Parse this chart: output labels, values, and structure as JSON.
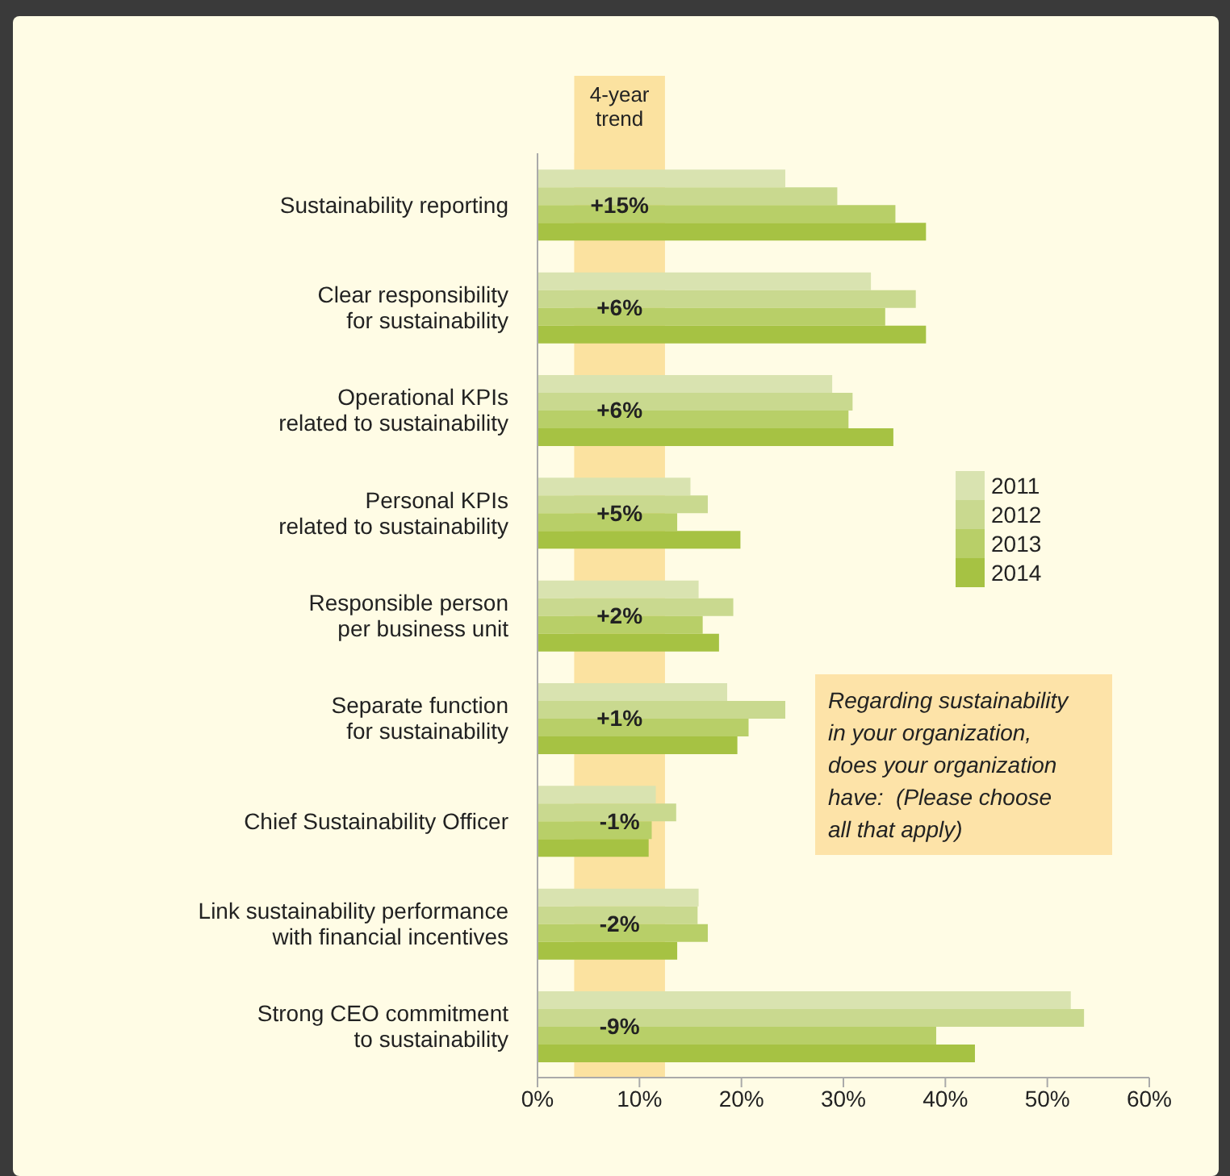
{
  "chart_data": {
    "type": "bar",
    "orientation": "horizontal",
    "categories": [
      "Sustainability reporting",
      "Clear responsibility\nfor sustainability",
      "Operational KPIs\nrelated to sustainability",
      "Personal KPIs\nrelated to sustainability",
      "Responsible person\nper business unit",
      "Separate function\nfor sustainability",
      "Chief Sustainability Officer",
      "Link sustainability performance\nwith financial incentives",
      "Strong CEO commitment\nto sustainability"
    ],
    "series": [
      {
        "name": "2011",
        "color": "#d9e3b0",
        "values": [
          24.3,
          32.7,
          28.9,
          15.0,
          15.8,
          18.6,
          11.6,
          15.8,
          52.3
        ]
      },
      {
        "name": "2012",
        "color": "#c9d98f",
        "values": [
          29.4,
          37.1,
          30.9,
          16.7,
          19.2,
          24.3,
          13.6,
          15.7,
          53.6
        ]
      },
      {
        "name": "2013",
        "color": "#b8cf68",
        "values": [
          35.1,
          34.1,
          30.5,
          13.7,
          16.2,
          20.7,
          11.2,
          16.7,
          39.1
        ]
      },
      {
        "name": "2014",
        "color": "#a6c243",
        "values": [
          38.1,
          38.1,
          34.9,
          19.9,
          17.8,
          19.6,
          10.9,
          13.7,
          42.9
        ]
      }
    ],
    "xlim": [
      0,
      60
    ],
    "xticks": [
      {
        "value": 0,
        "label": "0%"
      },
      {
        "value": 10,
        "label": "10%"
      },
      {
        "value": 20,
        "label": "20%"
      },
      {
        "value": 30,
        "label": "30%"
      },
      {
        "value": 40,
        "label": "40%"
      },
      {
        "value": 50,
        "label": "50%"
      },
      {
        "value": 60,
        "label": "60%"
      }
    ],
    "bands": [
      {
        "axis": "x",
        "from": 3.6,
        "to": 12.5,
        "label": "4-year\ntrend",
        "color": "#fbe2a0"
      }
    ],
    "annotations": [
      {
        "text": "+15%",
        "y": "Sustainability reporting"
      },
      {
        "text": "+6%",
        "y": "Clear responsibility\nfor sustainability"
      },
      {
        "text": "+6%",
        "y": "Operational KPIs\nrelated to sustainability"
      },
      {
        "text": "+5%",
        "y": "Personal KPIs\nrelated to sustainability"
      },
      {
        "text": "+2%",
        "y": "Responsible person\nper business unit"
      },
      {
        "text": "+1%",
        "y": "Separate function\nfor sustainability"
      },
      {
        "text": "-1%",
        "y": "Chief Sustainability Officer"
      },
      {
        "text": "-2%",
        "y": "Link sustainability performance\nwith financial incentives"
      },
      {
        "text": "-9%",
        "y": "Strong CEO commitment\nto sustainability"
      },
      "Regarding sustainability\nin your organization,\ndoes your organization\nhave:  (Please choose\nall that apply)"
    ],
    "legend": "right",
    "grid": false
  }
}
